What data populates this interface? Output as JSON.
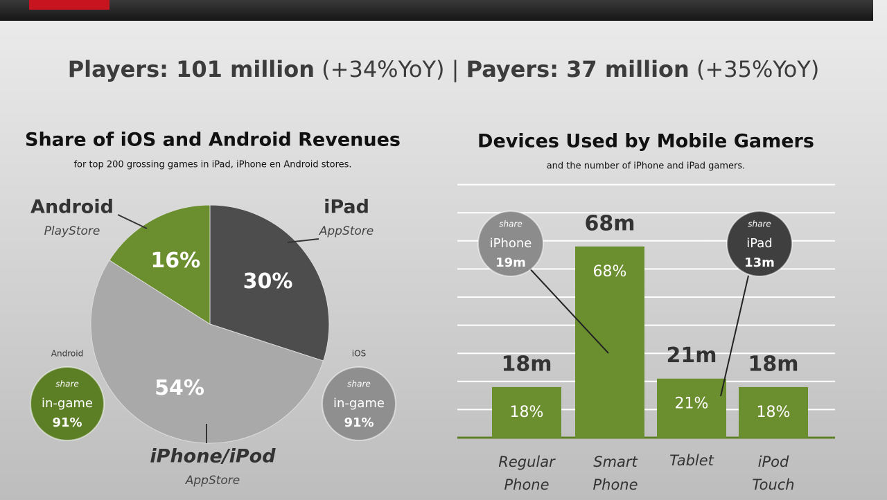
{
  "header": {
    "headline": [
      "Players: 101 million",
      "(+34%YoY)",
      "|",
      "Payers: 37 million",
      "(+35%YoY)"
    ]
  },
  "chart_data": [
    {
      "type": "pie",
      "title": "Share of iOS and Android Revenues",
      "subtitle": "for top 200 grossing games in iPad, iPhone en Android stores.",
      "categories": [
        "iPad",
        "iPhone/iPod",
        "Android"
      ],
      "sublabels": [
        "AppStore",
        "AppStore",
        "PlayStore"
      ],
      "values": [
        30,
        54,
        16
      ],
      "value_labels": [
        "30%",
        "54%",
        "16%"
      ],
      "colors": [
        "#4d4d4d",
        "#a9a9a9",
        "#6b8e2f"
      ],
      "annotations": [
        {
          "label": "Android",
          "lines": [
            "share",
            "in-game",
            "91%"
          ],
          "color": "#5c7f26"
        },
        {
          "label": "iOS",
          "lines": [
            "share",
            "in-game",
            "91%"
          ],
          "color": "#8f8f8f"
        }
      ]
    },
    {
      "type": "bar",
      "title": "Devices Used by Mobile Gamers",
      "subtitle": "and the number of iPhone and iPad gamers.",
      "categories": [
        [
          "Regular",
          "Phone"
        ],
        [
          "Smart",
          "Phone"
        ],
        [
          "Tablet"
        ],
        [
          "iPod",
          "Touch"
        ]
      ],
      "values": [
        18,
        68,
        21,
        18
      ],
      "value_labels": [
        "18%",
        "68%",
        "21%",
        "18%"
      ],
      "top_labels": [
        "18m",
        "68m",
        "21m",
        "18m"
      ],
      "color": "#6b8e2f",
      "ylim": [
        0,
        90
      ],
      "yticks": [
        0,
        10,
        20,
        30,
        40,
        50,
        60,
        70,
        80,
        90
      ],
      "grid": true,
      "annotations": [
        {
          "lines": [
            "share",
            "iPhone",
            "19m"
          ],
          "color": "#8c8c8c"
        },
        {
          "lines": [
            "share",
            "iPad",
            "13m"
          ],
          "color": "#3f3f3f"
        }
      ]
    }
  ]
}
